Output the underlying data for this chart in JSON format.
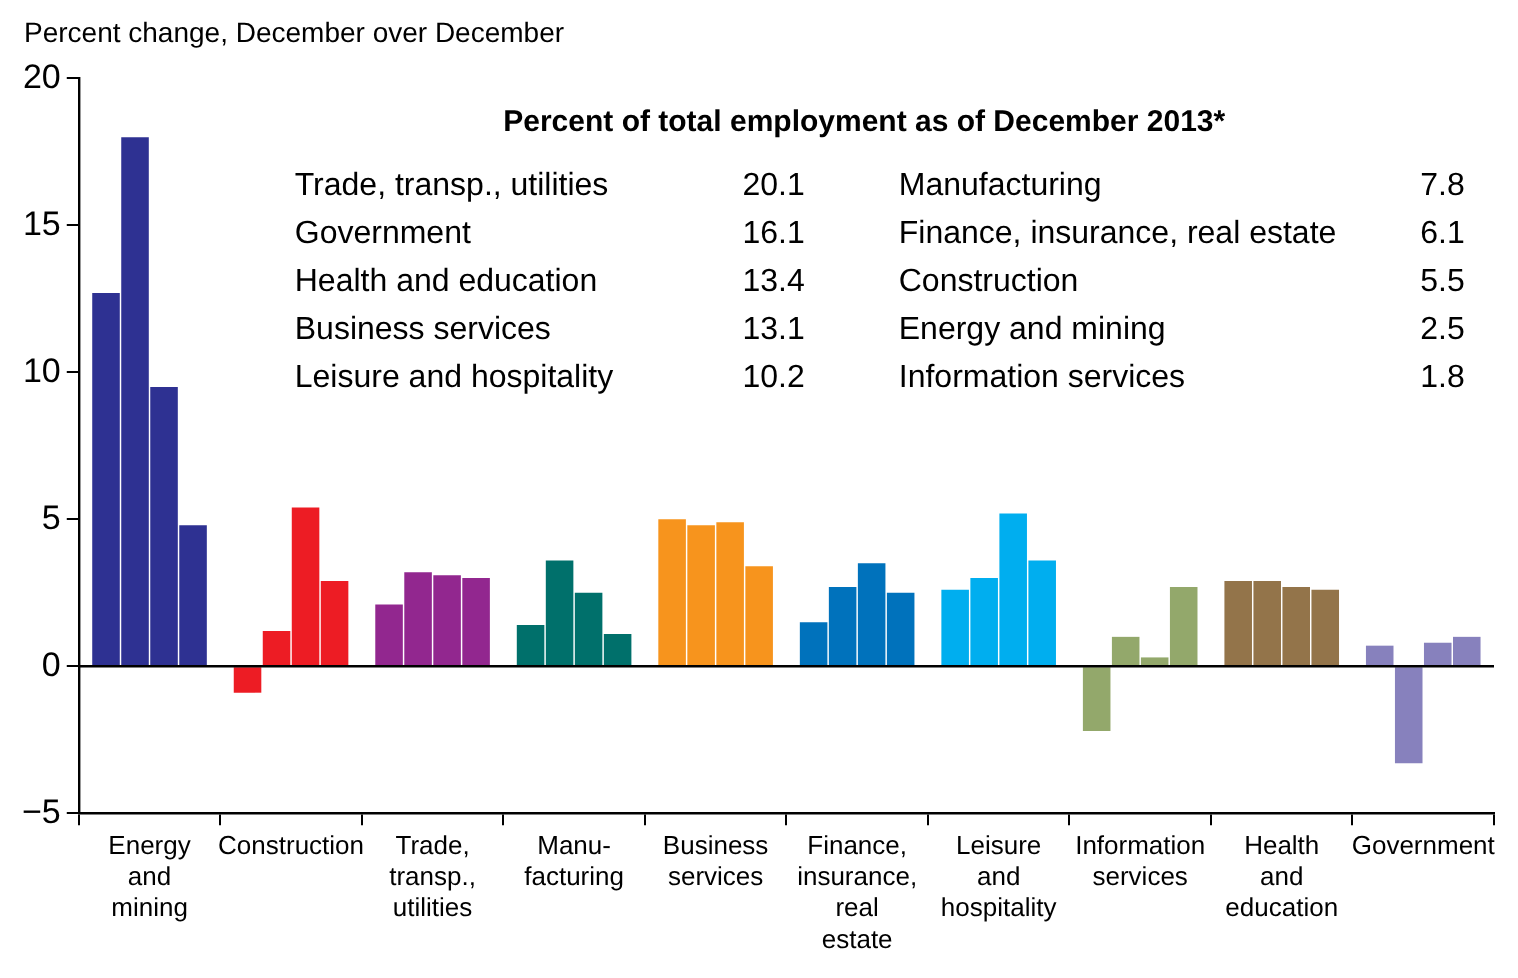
{
  "chart_data": {
    "type": "bar",
    "ylabel": "Percent change, December over December",
    "categories": [
      "Energy and mining",
      "Construction",
      "Trade, transp., utilities",
      "Manu-facturing",
      "Business services",
      "Finance, insurance, real estate",
      "Leisure and hospitality",
      "Information services",
      "Health and education",
      "Government"
    ],
    "series": [
      {
        "colors": [
          "#2e3192",
          "#ed1c24",
          "#92278f",
          "#00706b",
          "#f7941d",
          "#0072bc",
          "#00aeef",
          "#93a86b",
          "#93744a",
          "#8781bd"
        ],
        "values": [
          12.7,
          -0.9,
          2.1,
          1.4,
          5.0,
          1.5,
          2.6,
          -2.2,
          2.9,
          0.7
        ]
      },
      {
        "colors": [
          "#2e3192",
          "#ed1c24",
          "#92278f",
          "#00706b",
          "#f7941d",
          "#0072bc",
          "#00aeef",
          "#93a86b",
          "#93744a",
          "#8781bd"
        ],
        "values": [
          18.0,
          1.2,
          3.2,
          3.6,
          4.8,
          2.7,
          3.0,
          1.0,
          2.9,
          -3.3
        ]
      },
      {
        "colors": [
          "#2e3192",
          "#ed1c24",
          "#92278f",
          "#00706b",
          "#f7941d",
          "#0072bc",
          "#00aeef",
          "#93a86b",
          "#93744a",
          "#8781bd"
        ],
        "values": [
          9.5,
          5.4,
          3.1,
          2.5,
          4.9,
          3.5,
          5.2,
          0.3,
          2.7,
          0.8
        ]
      },
      {
        "colors": [
          "#2e3192",
          "#ed1c24",
          "#92278f",
          "#00706b",
          "#f7941d",
          "#0072bc",
          "#00aeef",
          "#93a86b",
          "#93744a",
          "#8781bd"
        ],
        "values": [
          4.8,
          2.9,
          3.0,
          1.1,
          3.4,
          2.5,
          3.6,
          2.7,
          2.6,
          1.0
        ]
      }
    ],
    "ylim": [
      -5,
      20
    ],
    "yticks": [
      {
        "value": -5,
        "label": "−5"
      },
      0,
      5,
      10,
      15,
      20
    ],
    "grid": false,
    "legend": false,
    "ref_lines": [
      {
        "axis": "y",
        "value": 0,
        "color": "#000000"
      }
    ],
    "annotations": [
      "Percent of total employment as of December 2013*",
      "Trade, transp., utilities",
      "20.1",
      "Government",
      "16.1",
      "Health and education",
      "13.4",
      "Business services",
      "13.1",
      "Leisure and hospitality",
      "10.2",
      "Manufacturing",
      "7.8",
      "Finance, insurance, real estate",
      "6.1",
      "Construction",
      "5.5",
      "Energy and mining",
      "2.5",
      "Information services",
      "1.8"
    ]
  }
}
